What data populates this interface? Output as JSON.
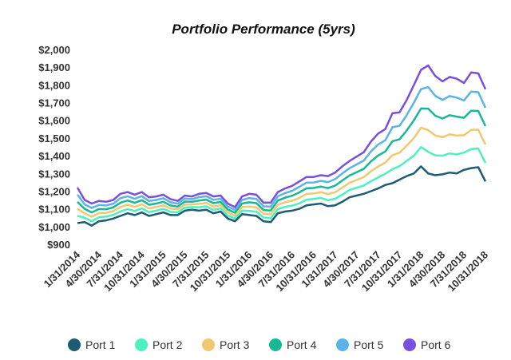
{
  "chart_data": {
    "type": "line",
    "title": "Portfolio Performance (5yrs)",
    "categories": [
      "1/31/2014",
      null,
      null,
      "4/30/2014",
      null,
      null,
      "7/31/2014",
      null,
      null,
      "10/31/2014",
      null,
      null,
      "1/31/2015",
      null,
      null,
      "4/30/2015",
      null,
      null,
      "7/31/2015",
      null,
      null,
      "10/31/2015",
      null,
      null,
      "1/31/2016",
      null,
      null,
      "4/30/2016",
      null,
      null,
      "7/31/2016",
      null,
      null,
      "10/31/2016",
      null,
      null,
      "1/31/2017",
      null,
      null,
      "4/30/2017",
      null,
      null,
      "7/31/2017",
      null,
      null,
      "10/31/2017",
      null,
      null,
      "1/31/2018",
      null,
      null,
      "4/30/2018",
      null,
      null,
      "7/31/2018",
      null,
      null,
      "10/31/2018"
    ],
    "series": [
      {
        "name": "Port 1",
        "color": "#1d5c74",
        "values": [
          1020,
          1025,
          1005,
          1030,
          1035,
          1045,
          1060,
          1075,
          1065,
          1080,
          1060,
          1070,
          1080,
          1065,
          1065,
          1090,
          1095,
          1090,
          1095,
          1075,
          1085,
          1045,
          1030,
          1070,
          1065,
          1060,
          1030,
          1025,
          1075,
          1085,
          1090,
          1100,
          1120,
          1125,
          1130,
          1115,
          1120,
          1140,
          1165,
          1175,
          1185,
          1200,
          1215,
          1235,
          1245,
          1265,
          1285,
          1300,
          1340,
          1300,
          1290,
          1295,
          1305,
          1300,
          1320,
          1330,
          1335,
          1255
        ]
      },
      {
        "name": "Port 2",
        "color": "#4ff0c0",
        "values": [
          1060,
          1050,
          1030,
          1053,
          1056,
          1066,
          1085,
          1099,
          1088,
          1103,
          1081,
          1090,
          1100,
          1083,
          1081,
          1107,
          1110,
          1109,
          1114,
          1094,
          1103,
          1062,
          1046,
          1090,
          1089,
          1084,
          1051,
          1047,
          1099,
          1111,
          1118,
          1131,
          1152,
          1156,
          1162,
          1149,
          1157,
          1180,
          1206,
          1219,
          1232,
          1256,
          1277,
          1298,
          1324,
          1341,
          1371,
          1400,
          1449,
          1422,
          1402,
          1400,
          1413,
          1407,
          1418,
          1438,
          1441,
          1359
        ]
      },
      {
        "name": "Port 3",
        "color": "#f0c870",
        "values": [
          1100,
          1075,
          1055,
          1076,
          1077,
          1087,
          1110,
          1123,
          1111,
          1126,
          1102,
          1110,
          1120,
          1101,
          1097,
          1124,
          1125,
          1128,
          1133,
          1113,
          1121,
          1079,
          1062,
          1110,
          1113,
          1108,
          1072,
          1069,
          1123,
          1137,
          1146,
          1162,
          1184,
          1187,
          1194,
          1183,
          1194,
          1220,
          1247,
          1263,
          1279,
          1312,
          1339,
          1361,
          1403,
          1417,
          1457,
          1500,
          1558,
          1544,
          1514,
          1505,
          1521,
          1514,
          1516,
          1546,
          1547,
          1463
        ]
      },
      {
        "name": "Port 4",
        "color": "#17b894",
        "values": [
          1140,
          1100,
          1080,
          1099,
          1098,
          1108,
          1135,
          1147,
          1134,
          1149,
          1123,
          1130,
          1140,
          1119,
          1113,
          1141,
          1140,
          1147,
          1152,
          1132,
          1139,
          1096,
          1078,
          1130,
          1137,
          1132,
          1093,
          1091,
          1147,
          1163,
          1174,
          1193,
          1216,
          1218,
          1226,
          1217,
          1231,
          1260,
          1288,
          1307,
          1326,
          1368,
          1401,
          1424,
          1482,
          1493,
          1543,
          1600,
          1667,
          1666,
          1626,
          1610,
          1629,
          1621,
          1614,
          1654,
          1653,
          1567
        ]
      },
      {
        "name": "Port 5",
        "color": "#5ab4e6",
        "values": [
          1180,
          1125,
          1105,
          1122,
          1119,
          1129,
          1160,
          1171,
          1157,
          1172,
          1144,
          1150,
          1160,
          1137,
          1129,
          1158,
          1155,
          1166,
          1171,
          1151,
          1157,
          1113,
          1094,
          1150,
          1161,
          1156,
          1114,
          1113,
          1171,
          1189,
          1202,
          1224,
          1248,
          1249,
          1258,
          1251,
          1268,
          1300,
          1329,
          1351,
          1373,
          1424,
          1463,
          1487,
          1561,
          1569,
          1629,
          1700,
          1776,
          1788,
          1738,
          1715,
          1737,
          1728,
          1712,
          1762,
          1759,
          1671
        ]
      },
      {
        "name": "Port 6",
        "color": "#7a4fe0",
        "values": [
          1220,
          1150,
          1130,
          1145,
          1140,
          1150,
          1185,
          1195,
          1180,
          1195,
          1165,
          1170,
          1180,
          1155,
          1145,
          1175,
          1170,
          1185,
          1190,
          1170,
          1175,
          1130,
          1110,
          1170,
          1185,
          1180,
          1135,
          1135,
          1195,
          1215,
          1230,
          1255,
          1280,
          1280,
          1290,
          1285,
          1305,
          1340,
          1370,
          1395,
          1420,
          1480,
          1525,
          1550,
          1640,
          1645,
          1715,
          1800,
          1885,
          1910,
          1850,
          1820,
          1845,
          1835,
          1810,
          1870,
          1865,
          1775
        ]
      }
    ],
    "ylim": [
      900,
      2000
    ],
    "yticks": [
      {
        "value": 900,
        "label": "$900"
      },
      {
        "value": 1000,
        "label": "$1,000"
      },
      {
        "value": 1100,
        "label": "$1,100"
      },
      {
        "value": 1200,
        "label": "$1,200"
      },
      {
        "value": 1300,
        "label": "$1,300"
      },
      {
        "value": 1400,
        "label": "$1,400"
      },
      {
        "value": 1500,
        "label": "$1,500"
      },
      {
        "value": 1600,
        "label": "$1,600"
      },
      {
        "value": 1700,
        "label": "$1,700"
      },
      {
        "value": 1800,
        "label": "$1,800"
      },
      {
        "value": 1900,
        "label": "$1,900"
      },
      {
        "value": 2000,
        "label": "$2,000"
      }
    ],
    "grid": false,
    "legend": "bottom"
  }
}
